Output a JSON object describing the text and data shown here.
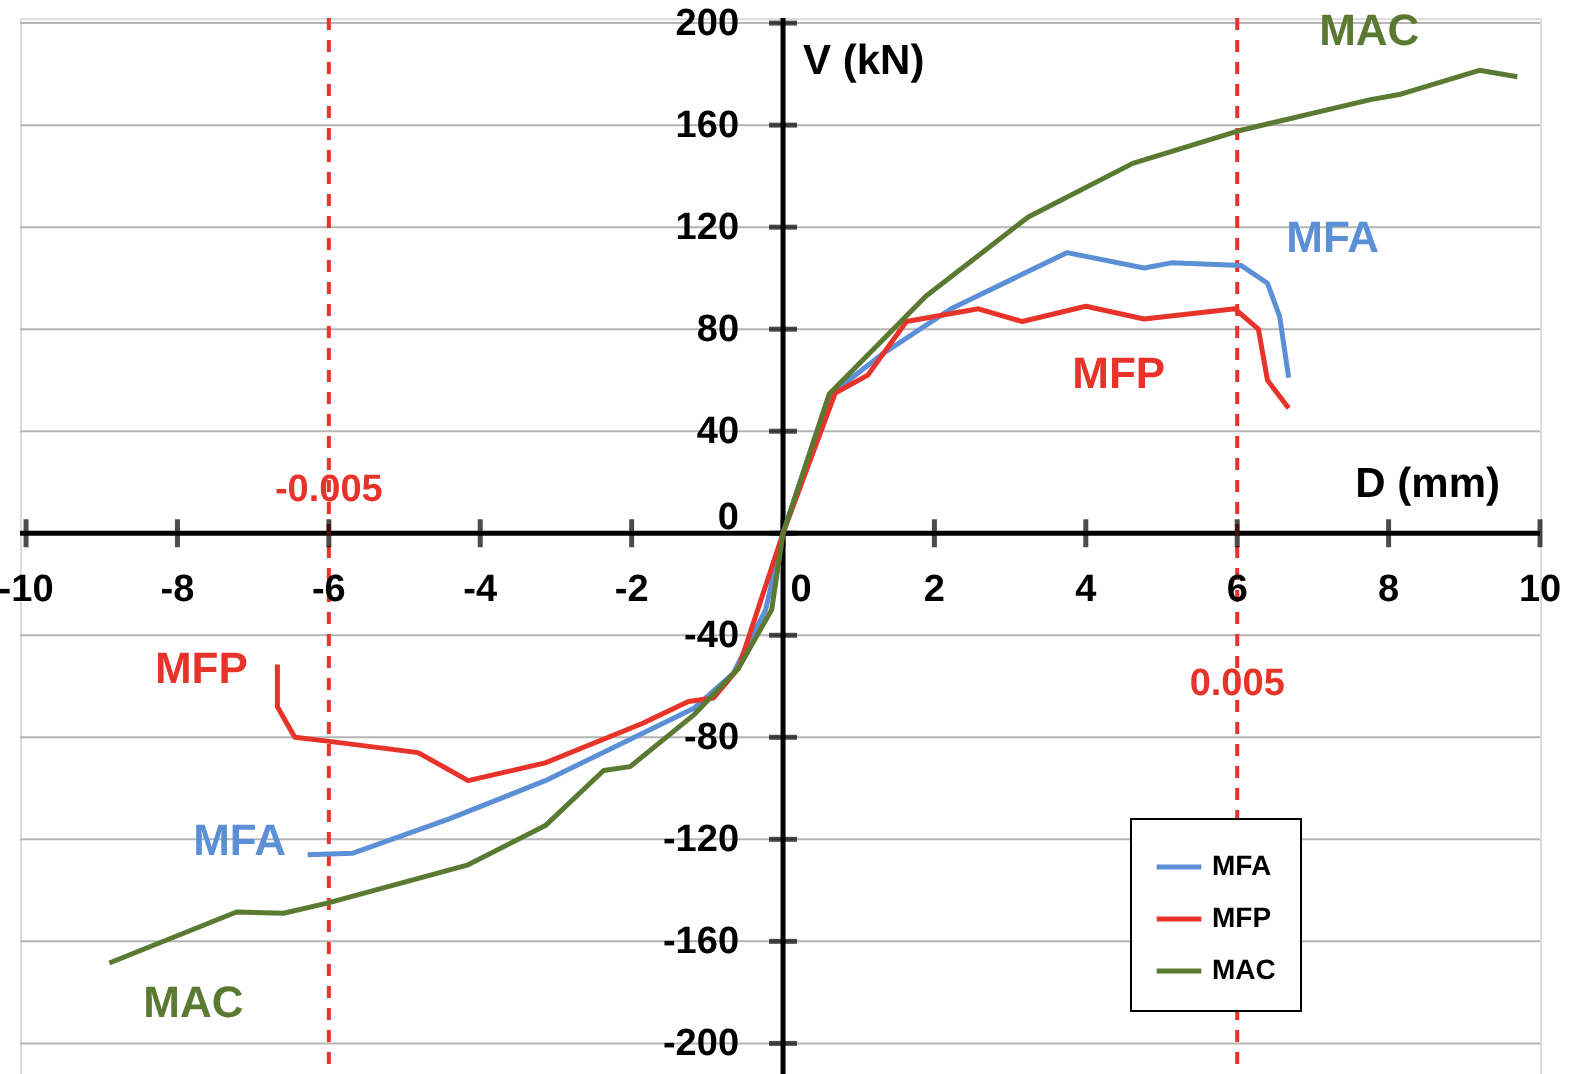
{
  "chart_data": {
    "type": "line",
    "xlabel": "D (mm)",
    "ylabel": "V (kN)",
    "xlim": [
      -10.08,
      10.0
    ],
    "ylim": [
      -212,
      202
    ],
    "xticks": [
      -10,
      -8,
      -6,
      -4,
      -2,
      0,
      2,
      4,
      6,
      8,
      10
    ],
    "yticks": [
      -200,
      -160,
      -120,
      -80,
      -40,
      0,
      40,
      80,
      120,
      160,
      200
    ],
    "grid": "y",
    "legend": "bottom right",
    "line_style": "solid",
    "marker": "none",
    "series": [
      {
        "name": "MFA",
        "color": "#5b8fd6",
        "x": [
          -6.28,
          -5.69,
          -4.41,
          -3.14,
          -1.86,
          -1.17,
          -0.66,
          -0.23,
          0,
          0.61,
          1.3,
          2.22,
          3.75,
          4.77,
          5.13,
          6.05,
          6.4,
          6.56,
          6.68
        ],
        "values": [
          -126,
          -125.5,
          -112,
          -97,
          -78.5,
          -68.5,
          -55,
          -30,
          0,
          54,
          70,
          88,
          110,
          104,
          106,
          105,
          98,
          85,
          61
        ]
      },
      {
        "name": "MFP",
        "color": "#e8332a",
        "x": [
          -6.68,
          -6.68,
          -6.45,
          -6.02,
          -4.82,
          -4.16,
          -3.14,
          -1.86,
          -1.25,
          -0.92,
          -0.59,
          0,
          0.69,
          1.12,
          1.63,
          2.58,
          3.16,
          4.0,
          4.77,
          5.97,
          6.28,
          6.4,
          6.68
        ],
        "values": [
          -51.5,
          -68,
          -80,
          -81.5,
          -86,
          -97,
          -90,
          -74.6,
          -66,
          -64.6,
          -53,
          0,
          55,
          62,
          83,
          88,
          83,
          89,
          84,
          88,
          80,
          60,
          49
        ]
      },
      {
        "name": "MAC",
        "color": "#5a7a32",
        "x": [
          -8.9,
          -7.22,
          -6.6,
          -6.02,
          -4.16,
          -3.14,
          -2.37,
          -2.02,
          -1.17,
          -0.59,
          -0.15,
          0,
          0.61,
          1.89,
          3.24,
          4.62,
          6.05,
          7.76,
          8.14,
          9.2,
          9.7
        ],
        "values": [
          -168.5,
          -148.5,
          -149,
          -145,
          -130,
          -114.6,
          -93,
          -91.5,
          -71,
          -53,
          -30,
          0,
          54.6,
          93,
          124,
          145,
          158,
          170,
          172,
          181.5,
          179
        ]
      }
    ],
    "ref_lines": [
      {
        "axis": "x",
        "value": -6,
        "color": "#e8332a",
        "line_style": "dashed"
      },
      {
        "axis": "x",
        "value": 6,
        "color": "#e8332a",
        "line_style": "dashed"
      }
    ],
    "annotations": [
      "-0.005",
      "0.005"
    ]
  }
}
